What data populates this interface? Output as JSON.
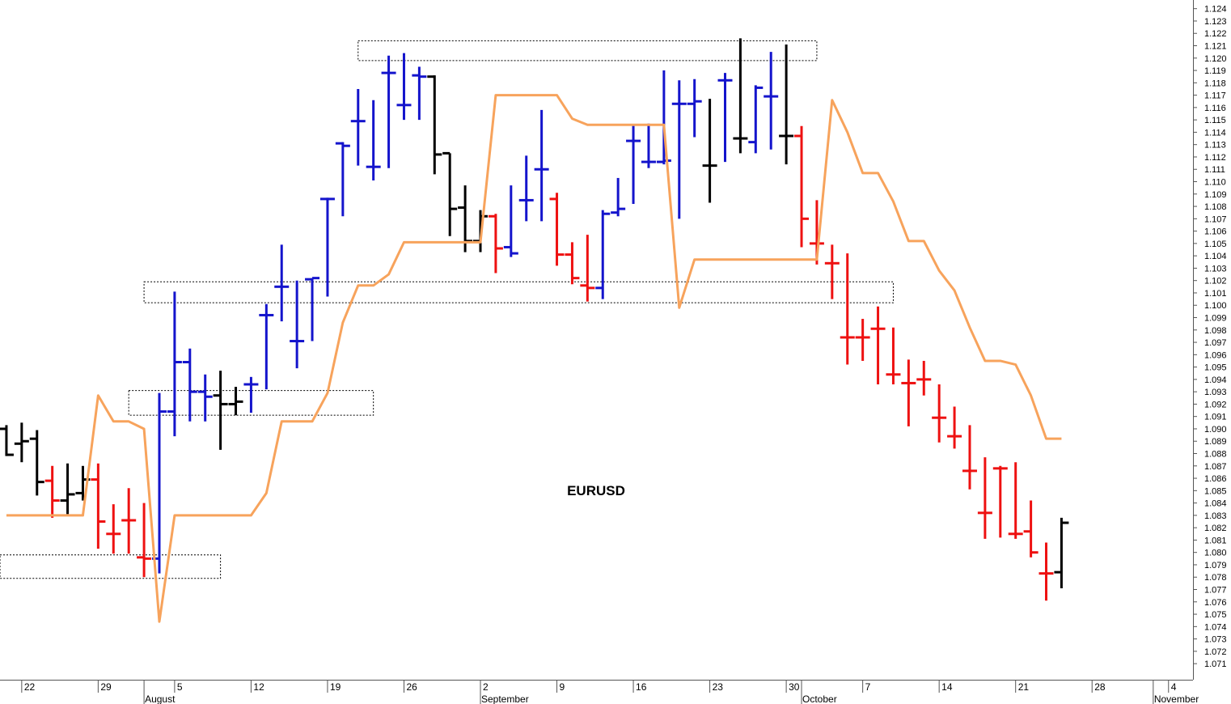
{
  "chart_data": {
    "type": "ohlc",
    "title": "EURUSD",
    "x": [
      0,
      1,
      2,
      3,
      4,
      5,
      6,
      7,
      8,
      9,
      10,
      11,
      12,
      13,
      14,
      15,
      16,
      17,
      18,
      19,
      20,
      21,
      22,
      23,
      24,
      25,
      26,
      27,
      28,
      29,
      30,
      31,
      32,
      33,
      34,
      35,
      36,
      37,
      38,
      39,
      40,
      41,
      42,
      43,
      44,
      45,
      46,
      47,
      48,
      49,
      50,
      51,
      52,
      53,
      54,
      55,
      56,
      57,
      58,
      59,
      60,
      61,
      62,
      63,
      64,
      65,
      66,
      67,
      68,
      69
    ],
    "open": [
      1.09,
      1.0888,
      1.0892,
      1.0858,
      1.0842,
      1.0848,
      1.0859,
      1.0815,
      1.0826,
      1.0796,
      1.0795,
      1.0914,
      1.0954,
      1.093,
      1.0927,
      1.092,
      1.0936,
      1.0992,
      1.1015,
      1.0971,
      1.1021,
      1.1086,
      1.1131,
      1.1149,
      1.1112,
      1.1188,
      1.1162,
      1.1186,
      1.1185,
      1.1123,
      1.1079,
      1.1052,
      1.1072,
      1.1047,
      1.1085,
      1.111,
      1.1086,
      1.1041,
      1.1016,
      1.1014,
      1.1075,
      1.1133,
      1.1116,
      1.1116,
      1.1163,
      1.1163,
      1.1113,
      1.1182,
      1.1135,
      1.1132,
      1.1169,
      1.1137,
      1.1137,
      1.105,
      1.1034,
      1.0974,
      1.0974,
      1.0981,
      1.0944,
      1.0937,
      1.094,
      1.0909,
      1.0894,
      1.0866,
      1.0832,
      1.0868,
      1.0815,
      1.0817,
      1.0783,
      1.0784
    ],
    "high": [
      1.0903,
      1.0905,
      1.0899,
      1.087,
      1.0872,
      1.087,
      1.0872,
      1.0839,
      1.0852,
      1.084,
      1.0929,
      1.1011,
      1.0965,
      1.0944,
      1.0947,
      1.0934,
      1.0942,
      1.1001,
      1.1049,
      1.102,
      1.1022,
      1.1087,
      1.1132,
      1.1175,
      1.1166,
      1.1202,
      1.1204,
      1.1193,
      1.1186,
      1.1123,
      1.1097,
      1.1077,
      1.1074,
      1.1097,
      1.1121,
      1.1158,
      1.1091,
      1.1051,
      1.1057,
      1.1077,
      1.1103,
      1.1146,
      1.1147,
      1.119,
      1.1182,
      1.1183,
      1.1167,
      1.1188,
      1.1216,
      1.1178,
      1.1205,
      1.1211,
      1.1145,
      1.1085,
      1.1049,
      1.1042,
      1.0989,
      1.0999,
      1.0982,
      1.0956,
      1.0955,
      1.0936,
      1.0918,
      1.0903,
      1.0877,
      1.087,
      1.0873,
      1.0842,
      1.0808,
      1.0828
    ],
    "low": [
      1.0878,
      1.0873,
      1.0846,
      1.0828,
      1.0831,
      1.0842,
      1.0803,
      1.0799,
      1.0799,
      1.078,
      1.0783,
      1.0894,
      1.0906,
      1.0906,
      1.0883,
      1.0911,
      1.0913,
      1.0932,
      1.0987,
      1.0949,
      1.0971,
      1.1007,
      1.1072,
      1.1113,
      1.1101,
      1.1111,
      1.115,
      1.115,
      1.1106,
      1.1056,
      1.1043,
      1.1043,
      1.1026,
      1.1039,
      1.1068,
      1.1068,
      1.1032,
      1.1017,
      1.1003,
      1.1005,
      1.1072,
      1.1082,
      1.1111,
      1.1114,
      1.107,
      1.1136,
      1.1083,
      1.1116,
      1.1123,
      1.1123,
      1.1126,
      1.1114,
      1.1047,
      1.1033,
      1.1005,
      1.0952,
      1.0955,
      1.0936,
      1.0936,
      1.0902,
      1.0927,
      1.0889,
      1.0884,
      1.0851,
      1.0811,
      1.0812,
      1.0811,
      1.0796,
      1.0761,
      1.0771
    ],
    "close": [
      1.0879,
      1.089,
      1.0857,
      1.0842,
      1.0847,
      1.0859,
      1.0825,
      1.0815,
      1.0826,
      1.0795,
      1.0914,
      1.0954,
      1.093,
      1.0926,
      1.092,
      1.0922,
      1.0936,
      1.0992,
      1.1015,
      1.0971,
      1.1022,
      1.1086,
      1.1129,
      1.1149,
      1.1112,
      1.1188,
      1.1162,
      1.1185,
      1.1122,
      1.1078,
      1.1052,
      1.1072,
      1.1046,
      1.1042,
      1.1085,
      1.111,
      1.1041,
      1.1022,
      1.1014,
      1.1074,
      1.1078,
      1.1133,
      1.1116,
      1.1117,
      1.1163,
      1.1165,
      1.1113,
      1.1182,
      1.1135,
      1.1176,
      1.1169,
      1.1137,
      1.107,
      1.105,
      1.1034,
      1.0974,
      1.0974,
      1.0981,
      1.0944,
      1.0937,
      1.094,
      1.0909,
      1.0894,
      1.0866,
      1.0832,
      1.0868,
      1.0815,
      1.08,
      1.0783,
      1.0824
    ],
    "colors": [
      "#000000",
      "#000000",
      "#000000",
      "#ee1111",
      "#000000",
      "#000000",
      "#ee1111",
      "#ee1111",
      "#ee1111",
      "#ee1111",
      "#1414cc",
      "#1414cc",
      "#1414cc",
      "#1414cc",
      "#000000",
      "#000000",
      "#1414cc",
      "#1414cc",
      "#1414cc",
      "#1414cc",
      "#1414cc",
      "#1414cc",
      "#1414cc",
      "#1414cc",
      "#1414cc",
      "#1414cc",
      "#1414cc",
      "#1414cc",
      "#000000",
      "#000000",
      "#000000",
      "#000000",
      "#ee1111",
      "#1414cc",
      "#1414cc",
      "#1414cc",
      "#ee1111",
      "#ee1111",
      "#ee1111",
      "#1414cc",
      "#1414cc",
      "#1414cc",
      "#1414cc",
      "#1414cc",
      "#1414cc",
      "#1414cc",
      "#000000",
      "#1414cc",
      "#000000",
      "#1414cc",
      "#1414cc",
      "#000000",
      "#ee1111",
      "#ee1111",
      "#ee1111",
      "#ee1111",
      "#ee1111",
      "#ee1111",
      "#ee1111",
      "#ee1111",
      "#ee1111",
      "#ee1111",
      "#ee1111",
      "#ee1111",
      "#ee1111",
      "#ee1111",
      "#ee1111",
      "#ee1111",
      "#ee1111",
      "#000000"
    ],
    "line": {
      "color": "#f7a35c",
      "values": [
        1.083,
        1.083,
        1.083,
        1.083,
        1.083,
        1.083,
        1.0927,
        1.0906,
        1.0906,
        1.09,
        1.0744,
        1.083,
        1.083,
        1.083,
        1.083,
        1.083,
        1.083,
        1.0848,
        1.0906,
        1.0906,
        1.0906,
        1.0929,
        1.0986,
        1.1016,
        1.1016,
        1.1025,
        1.1051,
        1.1051,
        1.1051,
        1.1051,
        1.1051,
        1.1051,
        1.117,
        1.117,
        1.117,
        1.117,
        1.117,
        1.1151,
        1.1146,
        1.1146,
        1.1146,
        1.1146,
        1.1146,
        1.1146,
        1.0998,
        1.1037,
        1.1037,
        1.1037,
        1.1037,
        1.1037,
        1.1037,
        1.1037,
        1.1037,
        1.1037,
        1.1166,
        1.114,
        1.1107,
        1.1107,
        1.1084,
        1.1052,
        1.1052,
        1.1028,
        1.1012,
        1.0982,
        1.0955,
        1.0955,
        1.0952,
        1.0927,
        1.0892,
        1.0892
      ]
    },
    "zones": [
      {
        "x": [
          23,
          53
        ],
        "y": [
          1.1198,
          1.1214
        ]
      },
      {
        "x": [
          9,
          58
        ],
        "y": [
          1.1002,
          1.1019
        ]
      },
      {
        "x": [
          8,
          24
        ],
        "y": [
          1.0911,
          1.0931
        ]
      },
      {
        "x": [
          -0.42,
          14
        ],
        "y": [
          1.0779,
          1.0798
        ]
      }
    ],
    "xlim": [
      -0.42,
      77.6
    ],
    "ylim": [
      1.0697,
      1.1247
    ],
    "yticks": [
      1.071,
      1.072,
      1.073,
      1.074,
      1.075,
      1.076,
      1.077,
      1.078,
      1.079,
      {
        "value": 1.08,
        "label": "1.080"
      },
      1.081,
      1.082,
      1.083,
      1.084,
      1.085,
      1.086,
      1.087,
      1.088,
      1.089,
      {
        "value": 1.09,
        "label": "1.090"
      },
      1.091,
      1.092,
      1.093,
      1.094,
      1.095,
      1.096,
      1.097,
      1.098,
      1.099,
      {
        "value": 1.1,
        "label": "1.100"
      },
      1.101,
      1.102,
      1.103,
      1.104,
      1.105,
      1.106,
      1.107,
      1.108,
      1.109,
      {
        "value": 1.11,
        "label": "1.110"
      },
      1.111,
      1.112,
      1.113,
      1.114,
      1.115,
      1.116,
      1.117,
      1.118,
      1.119,
      {
        "value": 1.12,
        "label": "1.120"
      },
      1.121,
      1.122,
      1.123,
      1.124
    ],
    "xticks": [
      {
        "value": 1,
        "label": "22"
      },
      {
        "value": 6,
        "label": "29"
      },
      {
        "value": 11,
        "label": "5"
      },
      {
        "value": 16,
        "label": "12"
      },
      {
        "value": 21,
        "label": "19"
      },
      {
        "value": 26,
        "label": "26"
      },
      {
        "value": 31,
        "label": "2"
      },
      {
        "value": 36,
        "label": "9"
      },
      {
        "value": 41,
        "label": "16"
      },
      {
        "value": 46,
        "label": "23"
      },
      {
        "value": 51,
        "label": "30"
      },
      {
        "value": 56,
        "label": "7"
      },
      {
        "value": 61,
        "label": "14"
      },
      {
        "value": 66,
        "label": "21"
      },
      {
        "value": 71,
        "label": "28"
      },
      {
        "value": 76,
        "label": "4"
      }
    ],
    "months": [
      {
        "value": 9,
        "label": "August"
      },
      {
        "value": 31,
        "label": "September"
      },
      {
        "value": 52,
        "label": "October"
      },
      {
        "value": 75,
        "label": "November"
      }
    ]
  }
}
